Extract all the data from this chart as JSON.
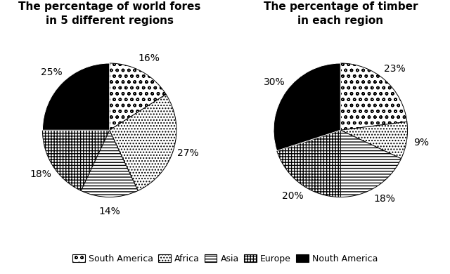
{
  "left_title": "The percentage of world fores\nin 5 different regions",
  "right_title": "The percentage of timber\nin each region",
  "regions": [
    "South America",
    "Africa",
    "Asia",
    "Europe",
    "Nouth America"
  ],
  "left_values": [
    16,
    27,
    14,
    18,
    25
  ],
  "right_values": [
    23,
    9,
    18,
    20,
    30
  ],
  "left_labels": [
    "16%",
    "27%",
    "14%",
    "18%",
    "25%"
  ],
  "right_labels": [
    "23%",
    "9%",
    "18%",
    "20%",
    "30%"
  ],
  "hatch_patterns": [
    "o o",
    ". . .",
    "------",
    "+++++",
    ""
  ],
  "facecolors": [
    "white",
    "white",
    "white",
    "white",
    "black"
  ],
  "background_color": "#ffffff",
  "title_fontsize": 11,
  "label_fontsize": 10,
  "legend_fontsize": 9,
  "startangle": 90
}
